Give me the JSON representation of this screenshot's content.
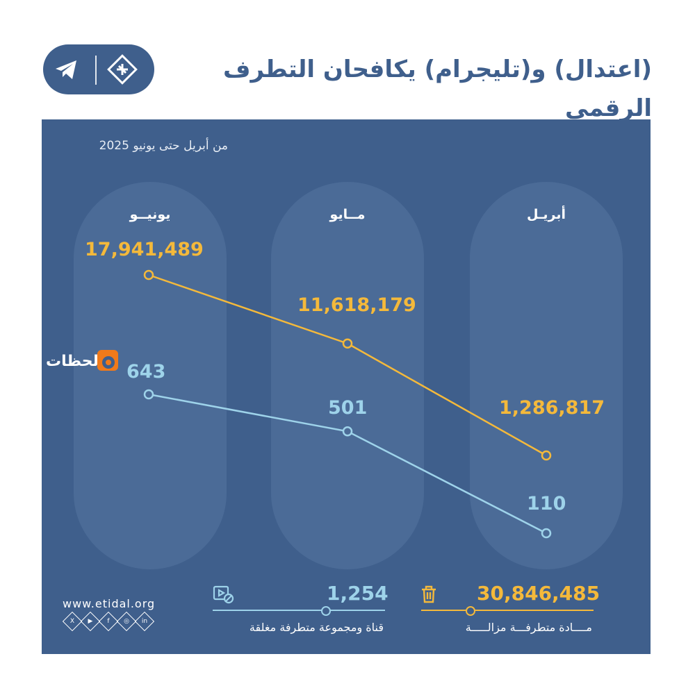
{
  "header": {
    "title": "(اعتدال) و(تليجرام) يكافحان التطرف الرقمي",
    "icons": [
      "telegram-icon",
      "etidal-logo-icon"
    ]
  },
  "colors": {
    "panel": "#3f5f8c",
    "column": "#4b6b97",
    "series_removed_content": "#f4b93b",
    "series_closed_channels": "#9ed3ea"
  },
  "subtitle": "من أبريل حتى يونيو 2025",
  "columns": {
    "april": "أبريـل",
    "may": "مــايو",
    "june": "يونيــو"
  },
  "chart_data": {
    "type": "line",
    "title": "(اعتدال) و(تليجرام) يكافحان التطرف الرقمي",
    "subtitle": "من أبريل حتى يونيو 2025",
    "categories": [
      "أبريـل",
      "مــايو",
      "يونيــو"
    ],
    "series": [
      {
        "name": "مــــادة متطرفـــة مزالـــــة",
        "color": "#f4b93b",
        "values": [
          1286817,
          11618179,
          17941489
        ],
        "labels": [
          "1,286,817",
          "11,618,179",
          "17,941,489"
        ]
      },
      {
        "name": "قناة ومجموعة متطرفة مغلقة",
        "color": "#9ed3ea",
        "values": [
          110,
          501,
          643
        ],
        "labels": [
          "110",
          "501",
          "643"
        ]
      }
    ],
    "grid": false,
    "legend": "bottom"
  },
  "totals": {
    "removed_content": {
      "value": "30,846,485",
      "label": "مــــادة متطرفـــة مزالـــــة",
      "icon": "trash-icon"
    },
    "closed_channels": {
      "value": "1,254",
      "label": "قناة ومجموعة متطرفة مغلقة",
      "icon": "blocked-video-icon"
    }
  },
  "brand": {
    "website": "www.etidal.org",
    "watermark": "لحظات",
    "social_icons": [
      "x-icon",
      "youtube-icon",
      "facebook-icon",
      "instagram-icon",
      "linkedin-icon"
    ]
  }
}
